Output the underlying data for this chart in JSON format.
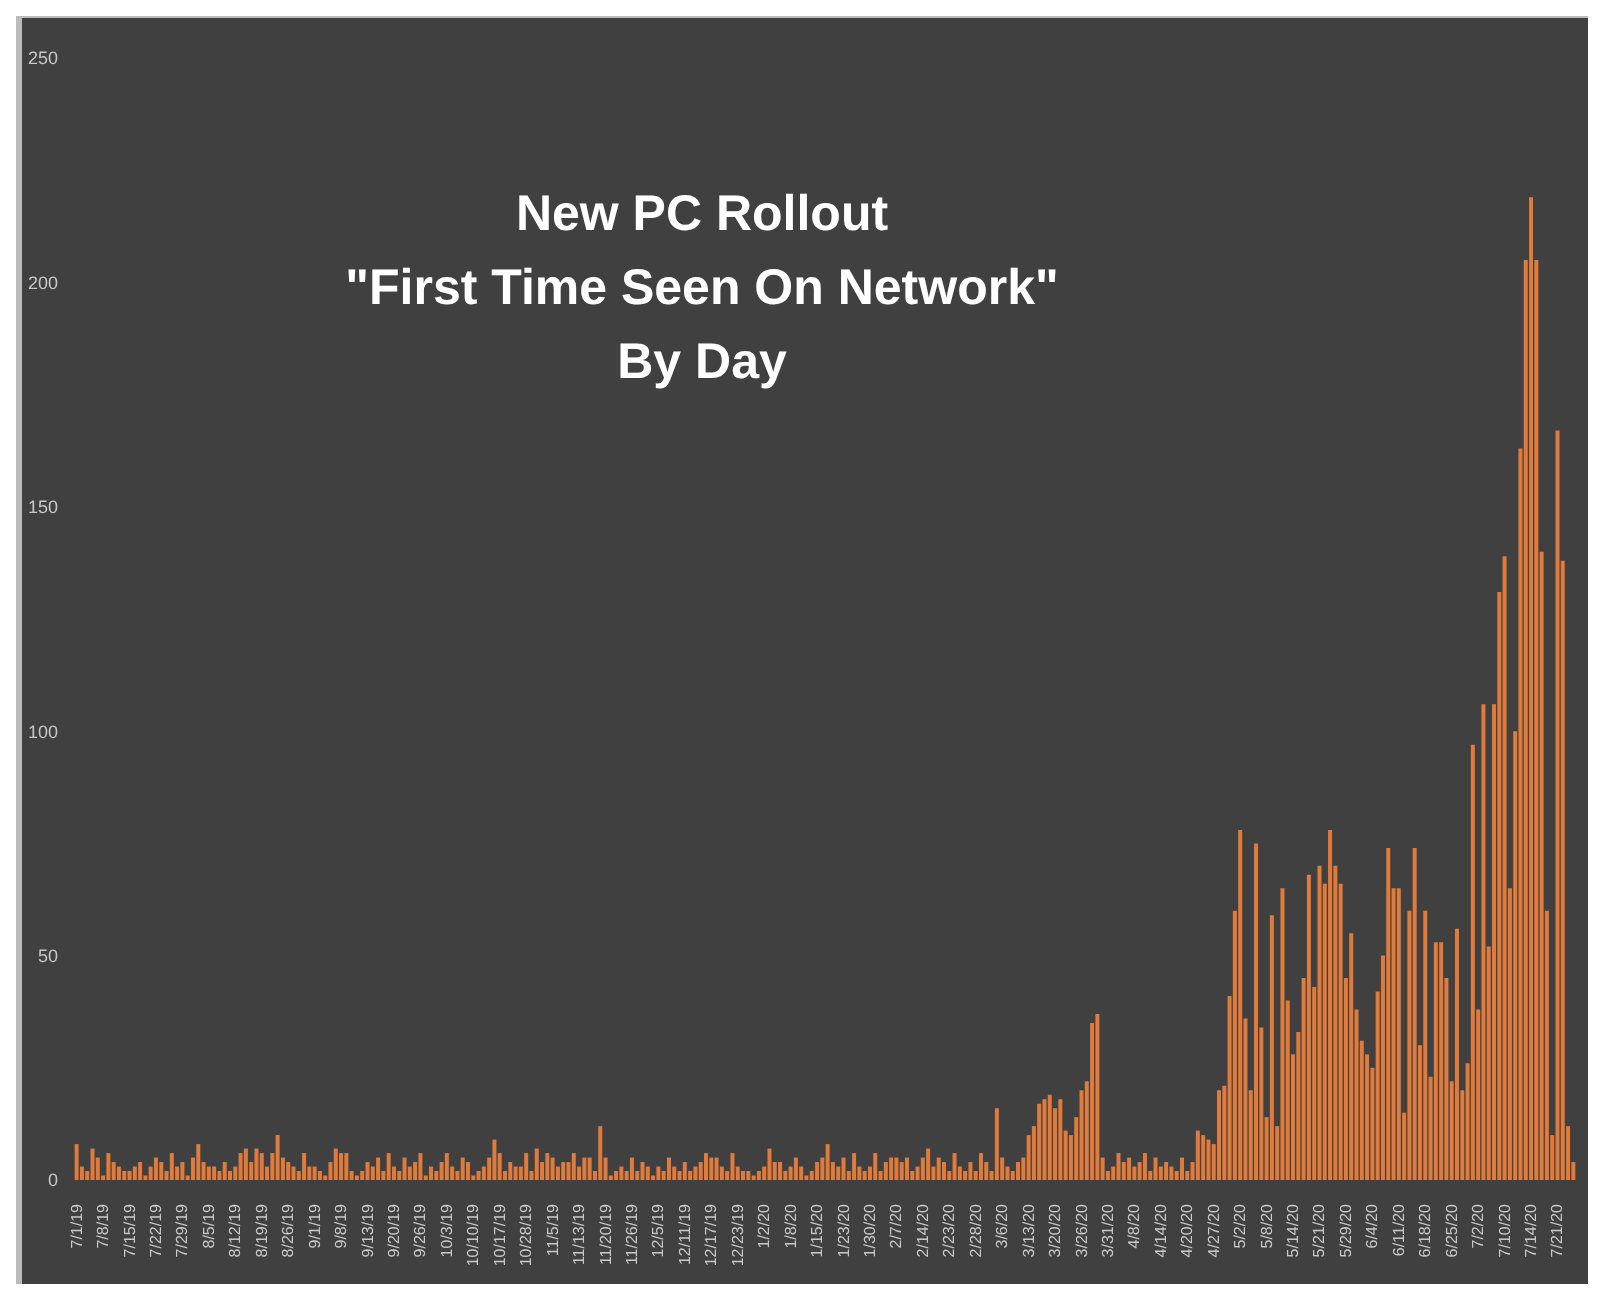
{
  "chart_data": {
    "type": "bar",
    "title": "New PC Rollout\n\"First Time Seen On Network\"\nBy Day",
    "categories": [
      "7/1/19",
      null,
      null,
      null,
      null,
      "7/8/19",
      null,
      null,
      null,
      null,
      "7/15/19",
      null,
      null,
      null,
      null,
      "7/22/19",
      null,
      null,
      null,
      null,
      "7/29/19",
      null,
      null,
      null,
      null,
      "8/5/19",
      null,
      null,
      null,
      null,
      "8/12/19",
      null,
      null,
      null,
      null,
      "8/19/19",
      null,
      null,
      null,
      null,
      "8/26/19",
      null,
      null,
      null,
      null,
      "9/1/19",
      null,
      null,
      null,
      null,
      "9/8/19",
      null,
      null,
      null,
      null,
      "9/13/19",
      null,
      null,
      null,
      null,
      "9/20/19",
      null,
      null,
      null,
      null,
      "9/26/19",
      null,
      null,
      null,
      null,
      "10/3/19",
      null,
      null,
      null,
      null,
      "10/10/19",
      null,
      null,
      null,
      null,
      "10/17/19",
      null,
      null,
      null,
      null,
      "10/28/19",
      null,
      null,
      null,
      null,
      "11/5/19",
      null,
      null,
      null,
      null,
      "11/13/19",
      null,
      null,
      null,
      null,
      "11/20/19",
      null,
      null,
      null,
      null,
      "11/26/19",
      null,
      null,
      null,
      null,
      "12/5/19",
      null,
      null,
      null,
      null,
      "12/11/19",
      null,
      null,
      null,
      null,
      "12/17/19",
      null,
      null,
      null,
      null,
      "12/23/19",
      null,
      null,
      null,
      null,
      "1/2/20",
      null,
      null,
      null,
      null,
      "1/8/20",
      null,
      null,
      null,
      null,
      "1/15/20",
      null,
      null,
      null,
      null,
      "1/23/20",
      null,
      null,
      null,
      null,
      "1/30/20",
      null,
      null,
      null,
      null,
      "2/7/20",
      null,
      null,
      null,
      null,
      "2/14/20",
      null,
      null,
      null,
      null,
      "2/23/20",
      null,
      null,
      null,
      null,
      "2/28/20",
      null,
      null,
      null,
      null,
      "3/6/20",
      null,
      null,
      null,
      null,
      "3/13/20",
      null,
      null,
      null,
      null,
      "3/20/20",
      null,
      null,
      null,
      null,
      "3/26/20",
      null,
      null,
      null,
      null,
      "3/31/20",
      null,
      null,
      null,
      null,
      "4/8/20",
      null,
      null,
      null,
      null,
      "4/14/20",
      null,
      null,
      null,
      null,
      "4/20/20",
      null,
      null,
      null,
      null,
      "4/27/20",
      null,
      null,
      null,
      null,
      "5/2/20",
      null,
      null,
      null,
      null,
      "5/8/20",
      null,
      null,
      null,
      null,
      "5/14/20",
      null,
      null,
      null,
      null,
      "5/21/20",
      null,
      null,
      null,
      null,
      "5/29/20",
      null,
      null,
      null,
      null,
      "6/4/20",
      null,
      null,
      null,
      null,
      "6/11/20",
      null,
      null,
      null,
      null,
      "6/18/20",
      null,
      null,
      null,
      null,
      "6/25/20",
      null,
      null,
      null,
      null,
      "7/2/20",
      null,
      null,
      null,
      null,
      "7/10/20",
      null,
      null,
      null,
      null,
      "7/14/20",
      null,
      null,
      null,
      null,
      "7/21/20",
      null,
      null,
      null
    ],
    "values": [
      8,
      3,
      2,
      7,
      5,
      1,
      6,
      4,
      3,
      2,
      2,
      3,
      4,
      1,
      3,
      5,
      4,
      2,
      6,
      3,
      4,
      1,
      5,
      8,
      4,
      3,
      3,
      2,
      4,
      2,
      3,
      6,
      7,
      4,
      7,
      6,
      3,
      6,
      10,
      5,
      4,
      3,
      2,
      6,
      3,
      3,
      2,
      1,
      4,
      7,
      6,
      6,
      2,
      1,
      2,
      4,
      3,
      5,
      2,
      6,
      3,
      2,
      5,
      3,
      4,
      6,
      1,
      3,
      2,
      4,
      6,
      3,
      2,
      5,
      4,
      1,
      2,
      3,
      5,
      9,
      6,
      2,
      4,
      3,
      3,
      6,
      2,
      7,
      4,
      6,
      5,
      3,
      4,
      4,
      6,
      3,
      5,
      5,
      2,
      12,
      5,
      1,
      2,
      3,
      2,
      5,
      2,
      4,
      3,
      1,
      3,
      2,
      5,
      3,
      2,
      4,
      2,
      3,
      4,
      6,
      5,
      5,
      3,
      2,
      6,
      3,
      2,
      2,
      1,
      2,
      3,
      7,
      4,
      4,
      2,
      3,
      5,
      3,
      1,
      2,
      4,
      5,
      8,
      4,
      3,
      5,
      2,
      6,
      3,
      2,
      3,
      6,
      2,
      4,
      5,
      5,
      4,
      5,
      2,
      3,
      5,
      7,
      3,
      5,
      4,
      2,
      6,
      3,
      2,
      4,
      2,
      6,
      4,
      2,
      16,
      5,
      3,
      2,
      4,
      5,
      10,
      12,
      17,
      18,
      19,
      16,
      18,
      11,
      10,
      14,
      20,
      22,
      35,
      37,
      5,
      2,
      3,
      6,
      4,
      5,
      3,
      4,
      6,
      2,
      5,
      3,
      4,
      3,
      2,
      5,
      2,
      4,
      11,
      10,
      9,
      8,
      20,
      21,
      41,
      60,
      78,
      36,
      20,
      75,
      34,
      14,
      59,
      12,
      65,
      40,
      28,
      33,
      45,
      68,
      43,
      70,
      66,
      78,
      70,
      66,
      45,
      55,
      38,
      31,
      28,
      25,
      42,
      50,
      74,
      65,
      65,
      15,
      60,
      74,
      30,
      60,
      23,
      53,
      53,
      45,
      22,
      56,
      20,
      26,
      97,
      38,
      106,
      52,
      106,
      131,
      139,
      65,
      100,
      163,
      205,
      219,
      205,
      140,
      60,
      10,
      167,
      138,
      12,
      4
    ],
    "color": "#e07b3c",
    "ylim": [
      0,
      250
    ],
    "yticks": [
      0,
      50,
      100,
      150,
      200,
      250
    ]
  }
}
